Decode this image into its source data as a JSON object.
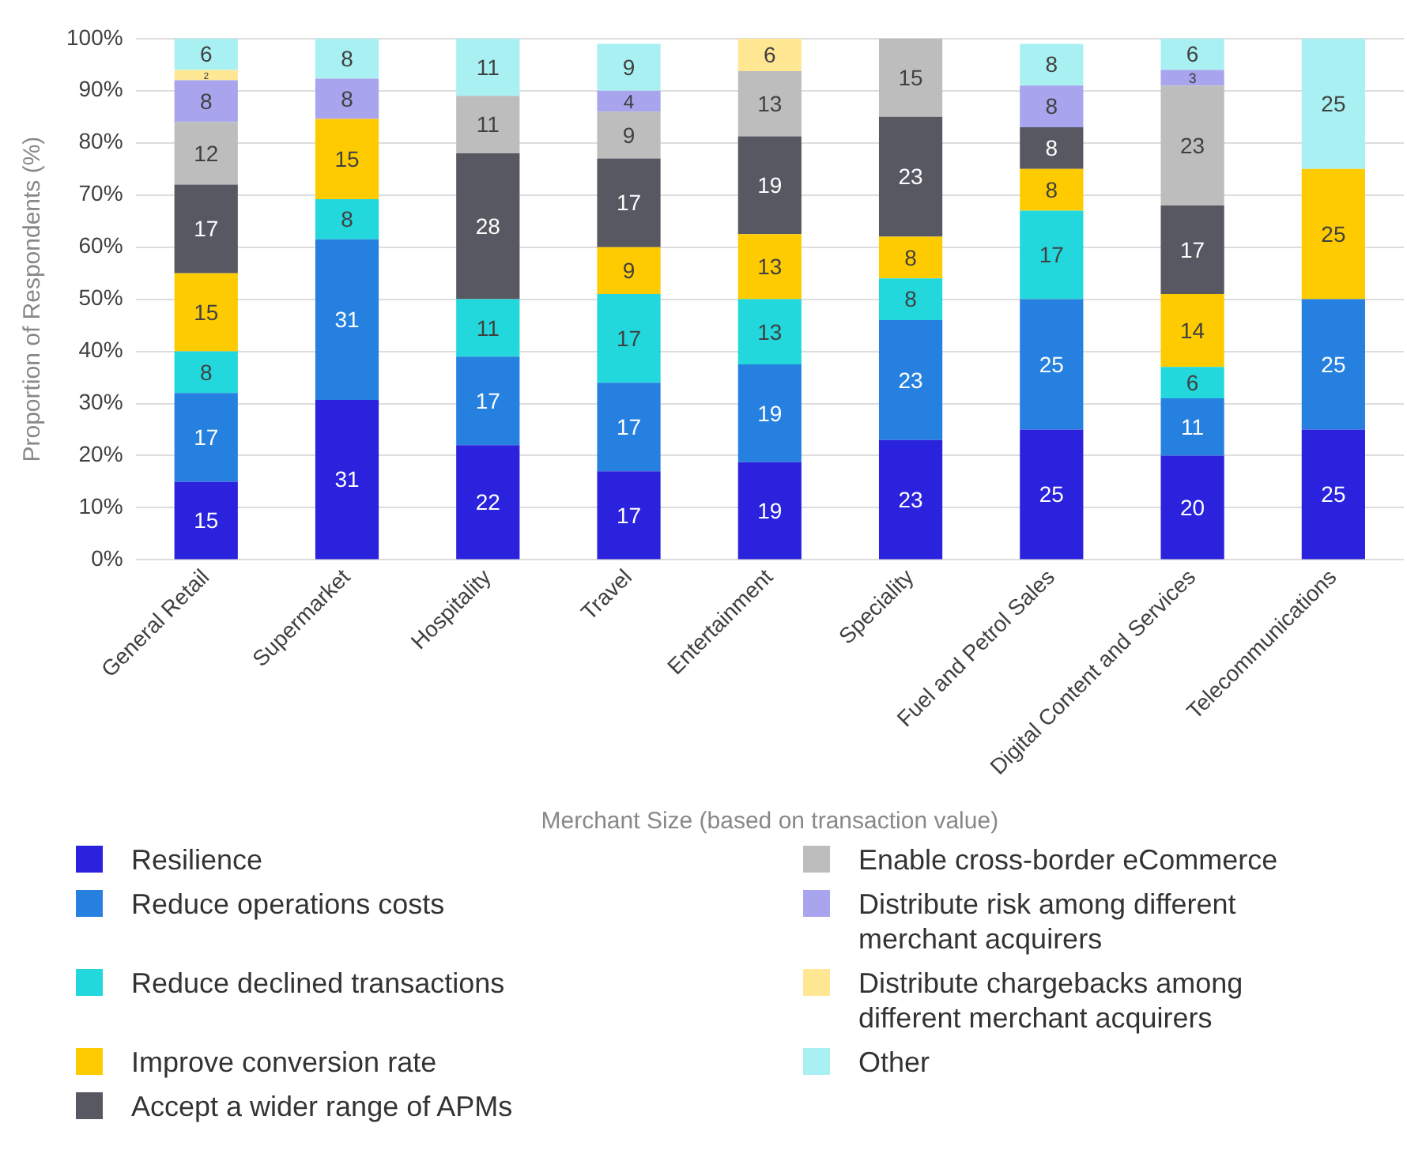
{
  "chart_data": {
    "type": "bar",
    "stacked": true,
    "xlabel": "Merchant Size (based on transaction value)",
    "ylabel": "Proportion of Respondents (%)",
    "categories": [
      "General Retail",
      "Supermarket",
      "Hospitality",
      "Travel",
      "Entertainment",
      "Speciality",
      "Fuel and Petrol Sales",
      "Digital Content and Services",
      "Telecommunications"
    ],
    "ylim": [
      0,
      100
    ],
    "yticks": [
      {
        "value": 0,
        "label": "0%"
      },
      {
        "value": 10,
        "label": "10%"
      },
      {
        "value": 20,
        "label": "20%"
      },
      {
        "value": 30,
        "label": "30%"
      },
      {
        "value": 40,
        "label": "40%"
      },
      {
        "value": 50,
        "label": "50%"
      },
      {
        "value": 60,
        "label": "60%"
      },
      {
        "value": 70,
        "label": "70%"
      },
      {
        "value": 80,
        "label": "80%"
      },
      {
        "value": 90,
        "label": "90%"
      },
      {
        "value": 100,
        "label": "100%"
      }
    ],
    "grid": "y",
    "legend": "bottom",
    "series": [
      {
        "name": "Resilience",
        "color": "#2a22dc",
        "values": [
          15,
          30.7,
          22,
          17,
          18.75,
          23,
          25,
          20,
          25
        ],
        "value_labels": [
          "15",
          "31",
          "22",
          "17",
          "19",
          "23",
          "25",
          "20",
          "25"
        ]
      },
      {
        "name": "Reduce operations costs",
        "color": "#2680e0",
        "values": [
          17,
          30.8,
          17,
          17,
          18.75,
          23,
          25,
          11,
          25
        ],
        "value_labels": [
          "17",
          "31",
          "17",
          "17",
          "19",
          "23",
          "25",
          "11",
          "25"
        ]
      },
      {
        "name": "Reduce declined transactions",
        "color": "#22d8dc",
        "values": [
          8,
          7.7,
          11,
          17,
          12.5,
          8,
          17,
          6,
          null
        ],
        "value_labels": [
          "8",
          "8",
          "11",
          "17",
          "13",
          "8",
          "17",
          "6",
          null
        ]
      },
      {
        "name": "Improve conversion rate",
        "color": "#fecb00",
        "values": [
          15,
          15.4,
          null,
          9,
          12.5,
          8,
          8,
          14,
          25
        ],
        "value_labels": [
          "15",
          "15",
          null,
          "9",
          "13",
          "8",
          "8",
          "14",
          "25"
        ]
      },
      {
        "name": "Accept a wider range of APMs",
        "color": "#575862",
        "values": [
          17,
          null,
          28,
          17,
          18.75,
          23,
          8,
          17,
          null
        ],
        "value_labels": [
          "17",
          null,
          "28",
          "17",
          "19",
          "23",
          "8",
          "17",
          null
        ]
      },
      {
        "name": "Enable cross-border eCommerce",
        "color": "#bdbdbd",
        "values": [
          12,
          null,
          11,
          9,
          12.5,
          15,
          null,
          23,
          null
        ],
        "value_labels": [
          "12",
          null,
          "11",
          "9",
          "13",
          "15",
          null,
          "23",
          null
        ]
      },
      {
        "name": "Distribute risk among different merchant acquirers",
        "color": "#a8a4ee",
        "values": [
          8,
          7.7,
          null,
          4,
          null,
          null,
          8,
          3,
          null
        ],
        "value_labels": [
          "8",
          "8",
          null,
          "4",
          null,
          null,
          "8",
          "3",
          null
        ]
      },
      {
        "name": "Distribute chargebacks among different merchant acquirers",
        "color": "#ffe794",
        "values": [
          2,
          null,
          null,
          null,
          6.25,
          null,
          null,
          null,
          null
        ],
        "value_labels": [
          "2",
          null,
          null,
          null,
          "6",
          null,
          null,
          null,
          null
        ]
      },
      {
        "name": "Other",
        "color": "#a8f0f2",
        "values": [
          6,
          7.7,
          11,
          9,
          null,
          null,
          8,
          6,
          25
        ],
        "value_labels": [
          "6",
          "8",
          "11",
          "9",
          null,
          null,
          "8",
          "6",
          "25"
        ]
      }
    ]
  }
}
